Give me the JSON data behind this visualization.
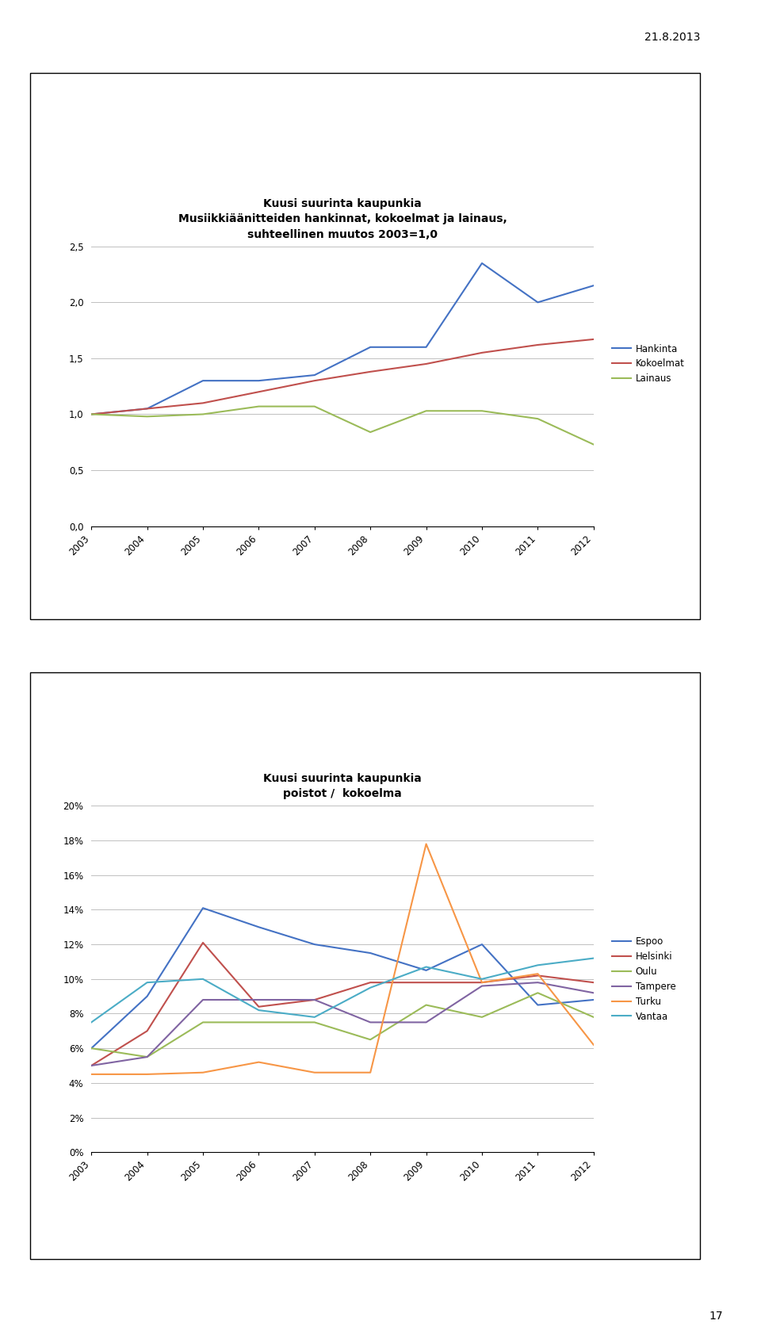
{
  "chart1": {
    "title_line1": "Kuusi suurinta kaupunkia",
    "title_line2": "Musiikkiäänitteiden hankinnat, kokoelmat ja lainaus,",
    "title_line3": "suhteellinen muutos 2003=1,0",
    "years": [
      2003,
      2004,
      2005,
      2006,
      2007,
      2008,
      2009,
      2010,
      2011,
      2012
    ],
    "hankinta": [
      1.0,
      1.05,
      1.3,
      1.3,
      1.35,
      1.6,
      1.6,
      2.35,
      2.0,
      2.15
    ],
    "kokoelmat": [
      1.0,
      1.05,
      1.1,
      1.2,
      1.3,
      1.38,
      1.45,
      1.55,
      1.62,
      1.67
    ],
    "lainaus": [
      1.0,
      0.98,
      1.0,
      1.07,
      1.07,
      0.84,
      1.03,
      1.03,
      0.96,
      0.73
    ],
    "hankinta_color": "#4472C4",
    "kokoelmat_color": "#C0504D",
    "lainaus_color": "#9BBB59",
    "ylim": [
      0.0,
      2.5
    ],
    "yticks": [
      0.0,
      0.5,
      1.0,
      1.5,
      2.0,
      2.5
    ],
    "ytick_labels": [
      "0,0",
      "0,5",
      "1,0",
      "1,5",
      "2,0",
      "2,5"
    ],
    "legend_labels": [
      "Hankinta",
      "Kokoelmat",
      "Lainaus"
    ]
  },
  "chart2": {
    "title_line1": "Kuusi suurinta kaupunkia",
    "title_line2": "poistot /  kokoelma",
    "years": [
      2003,
      2004,
      2005,
      2006,
      2007,
      2008,
      2009,
      2010,
      2011,
      2012
    ],
    "espoo": [
      0.06,
      0.09,
      0.141,
      0.13,
      0.12,
      0.115,
      0.105,
      0.12,
      0.085,
      0.088
    ],
    "helsinki": [
      0.05,
      0.07,
      0.121,
      0.084,
      0.088,
      0.098,
      0.098,
      0.098,
      0.102,
      0.098
    ],
    "oulu": [
      0.06,
      0.055,
      0.075,
      0.075,
      0.075,
      0.065,
      0.085,
      0.078,
      0.092,
      0.078
    ],
    "tampere": [
      0.05,
      0.055,
      0.088,
      0.088,
      0.088,
      0.075,
      0.075,
      0.096,
      0.098,
      0.092
    ],
    "turku": [
      0.045,
      0.045,
      0.046,
      0.052,
      0.046,
      0.046,
      0.178,
      0.098,
      0.103,
      0.062
    ],
    "vantaa": [
      0.075,
      0.098,
      0.1,
      0.082,
      0.078,
      0.095,
      0.107,
      0.1,
      0.108,
      0.112
    ],
    "espoo_color": "#4472C4",
    "helsinki_color": "#C0504D",
    "oulu_color": "#9BBB59",
    "tampere_color": "#8064A2",
    "turku_color": "#F79646",
    "vantaa_color": "#4BACC6",
    "ylim": [
      0.0,
      0.2
    ],
    "yticks": [
      0.0,
      0.02,
      0.04,
      0.06,
      0.08,
      0.1,
      0.12,
      0.14,
      0.16,
      0.18,
      0.2
    ],
    "ytick_labels": [
      "0%",
      "2%",
      "4%",
      "6%",
      "8%",
      "10%",
      "12%",
      "14%",
      "16%",
      "18%",
      "20%"
    ],
    "legend_labels": [
      "Espoo",
      "Helsinki",
      "Oulu",
      "Tampere",
      "Turku",
      "Vantaa"
    ]
  },
  "date_text": "21.8.2013",
  "page_number": "17",
  "bg_color": "#FFFFFF",
  "grid_color": "#C0C0C0",
  "box_facecolor": "#FFFFFF",
  "box_edgecolor": "#000000"
}
